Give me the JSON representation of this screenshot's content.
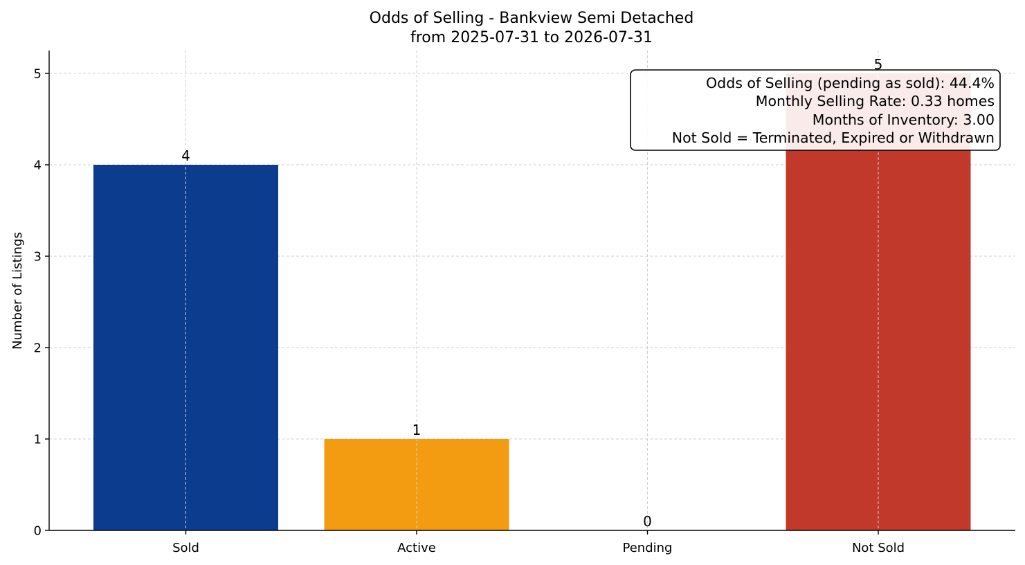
{
  "chart_data": {
    "type": "bar",
    "title": "Odds of Selling - Bankview Semi Detached",
    "subtitle": "from 2025-07-31 to 2026-07-31",
    "xlabel": "",
    "ylabel": "Number of Listings",
    "ylim": [
      0,
      5.25
    ],
    "yticks": [
      0,
      1,
      2,
      3,
      4,
      5
    ],
    "grid": true,
    "categories": [
      "Sold",
      "Active",
      "Pending",
      "Not Sold"
    ],
    "values": [
      4,
      1,
      0,
      5
    ],
    "colors": [
      "#0b3c8e",
      "#f39c12",
      "#2e8b57",
      "#c0392b"
    ],
    "data_labels": [
      "4",
      "1",
      "0",
      "5"
    ],
    "annotation": {
      "lines": [
        "Odds of Selling (pending as sold): 44.4%",
        "Monthly Selling Rate: 0.33 homes",
        "Months of Inventory: 3.00",
        "Not Sold = Terminated, Expired or Withdrawn"
      ],
      "placement": "top-right"
    }
  }
}
